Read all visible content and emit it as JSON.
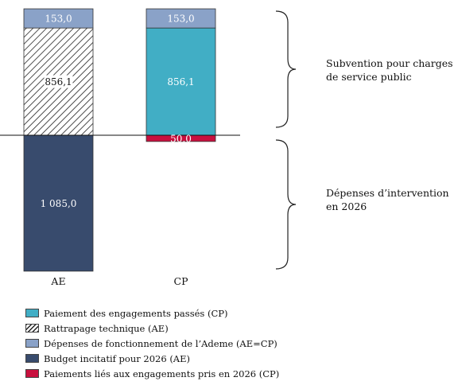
{
  "chart_data": {
    "type": "bar",
    "stacked": true,
    "categories": [
      "AE",
      "CP"
    ],
    "segments": [
      {
        "category": "AE",
        "name": "Rattrapage technique (AE)",
        "value": 856.1,
        "label": "856,1",
        "pattern": "hatch",
        "color": "#ffffff",
        "side": "above"
      },
      {
        "category": "AE",
        "name": "Dépenses de fonctionnement de l’Ademe (AE=CP)",
        "value": 153.0,
        "label": "153,0",
        "color": "#8aa2c8",
        "side": "above"
      },
      {
        "category": "AE",
        "name": "Budget incitatif pour 2026 (AE)",
        "value": 1085.0,
        "label": "1 085,0",
        "color": "#384b6d",
        "side": "below"
      },
      {
        "category": "CP",
        "name": "Paiement des engagements passés (CP)",
        "value": 856.1,
        "label": "856,1",
        "color": "#41aec5",
        "side": "above"
      },
      {
        "category": "CP",
        "name": "Dépenses de fonctionnement de l’Ademe (AE=CP)",
        "value": 153.0,
        "label": "153,0",
        "color": "#8aa2c8",
        "side": "above"
      },
      {
        "category": "CP",
        "name": "Paiements liés aux engagements pris en 2026 (CP)",
        "value": 50.0,
        "label": "50,0",
        "color": "#c8103e",
        "side": "below"
      }
    ],
    "grid": false,
    "legend_position": "bottom"
  },
  "annotations": {
    "upper": [
      "Subvention pour charges",
      "de service public"
    ],
    "lower": [
      "Dépenses d’intervention",
      "en 2026"
    ]
  },
  "legend": [
    {
      "label": "Paiement des engagements passés (CP)",
      "color": "#41aec5",
      "pattern": "solid"
    },
    {
      "label": "Rattrapage technique (AE)",
      "color": "#ffffff",
      "pattern": "hatch"
    },
    {
      "label": "Dépenses de fonctionnement de l’Ademe (AE=CP)",
      "color": "#8aa2c8",
      "pattern": "solid"
    },
    {
      "label": "Budget incitatif pour 2026 (AE)",
      "color": "#384b6d",
      "pattern": "solid"
    },
    {
      "label": "Paiements liés aux engagements pris en 2026 (CP)",
      "color": "#c8103e",
      "pattern": "solid"
    }
  ]
}
